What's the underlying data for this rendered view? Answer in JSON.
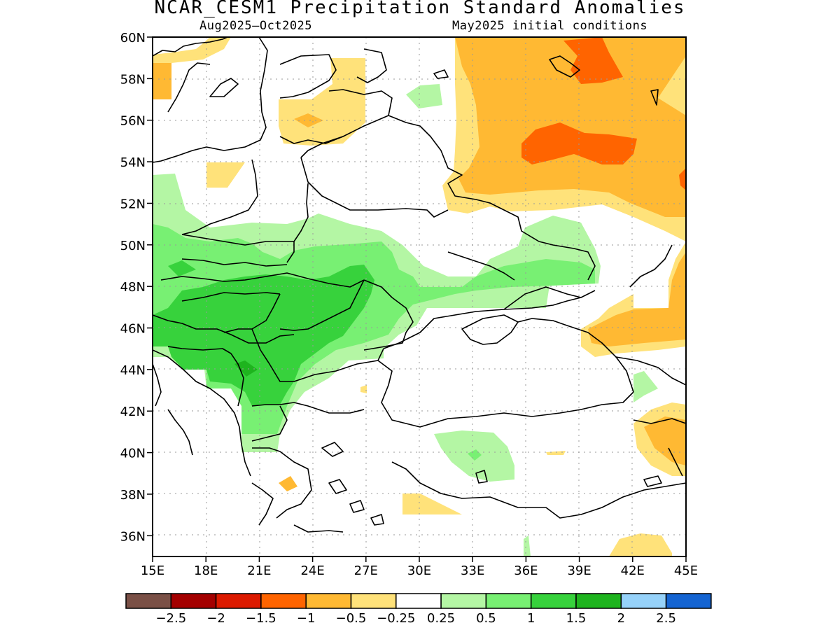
{
  "title": "NCAR_CESM1 Precipitation Standard Anomalies",
  "period": "Aug2025–Oct2025",
  "init": "May2025 initial conditions",
  "lat_labels": [
    "60N",
    "58N",
    "56N",
    "54N",
    "52N",
    "50N",
    "48N",
    "46N",
    "44N",
    "42N",
    "40N",
    "38N",
    "36N"
  ],
  "lon_labels": [
    "15E",
    "18E",
    "21E",
    "24E",
    "27E",
    "30E",
    "33E",
    "36E",
    "39E",
    "42E",
    "45E"
  ],
  "colorbar": {
    "colors": [
      "#7a5046",
      "#a40000",
      "#dc1a00",
      "#ff6400",
      "#ffb933",
      "#ffe27a",
      "#ffffff",
      "#b4f6a4",
      "#78f073",
      "#37d23c",
      "#1eb41e",
      "#96d2fa",
      "#1464d2"
    ],
    "labels": [
      "−2.5",
      "−2",
      "−1.5",
      "−1",
      "−0.5",
      "−0.25",
      "0.25",
      "0.5",
      "1",
      "1.5",
      "2",
      "2.5"
    ]
  },
  "colors": {
    "lightgreen": "#b4f6a4",
    "green": "#78f073",
    "medgreen": "#37d23c",
    "darkgreen": "#1eb41e",
    "lightyellow": "#ffe27a",
    "orange": "#ffb933",
    "darkorange": "#ff6400"
  }
}
